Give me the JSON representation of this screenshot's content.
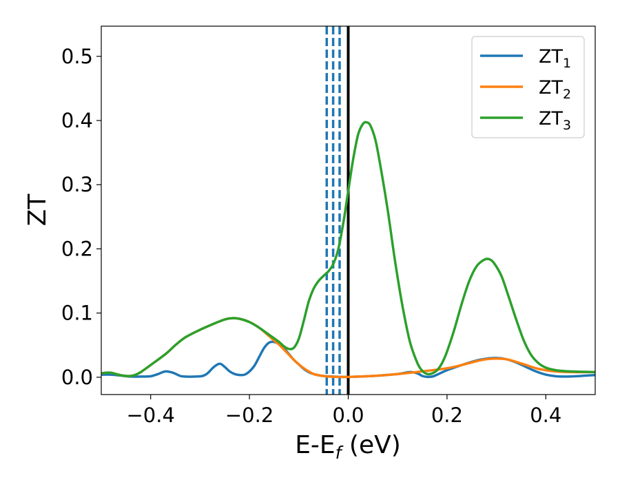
{
  "chart_data": {
    "type": "line",
    "xlabel": {
      "main": "E-E",
      "sub": "f",
      "suffix": " (eV)"
    },
    "ylabel": "ZT",
    "xlim": [
      -0.5,
      0.5
    ],
    "ylim": [
      -0.027,
      0.547
    ],
    "xticks": [
      {
        "value": -0.4,
        "label": "−0.4"
      },
      {
        "value": -0.2,
        "label": "−0.2"
      },
      {
        "value": 0.0,
        "label": "0.0"
      },
      {
        "value": 0.2,
        "label": "0.2"
      },
      {
        "value": 0.4,
        "label": "0.4"
      }
    ],
    "yticks": [
      {
        "value": 0.0,
        "label": "0.0"
      },
      {
        "value": 0.1,
        "label": "0.1"
      },
      {
        "value": 0.2,
        "label": "0.2"
      },
      {
        "value": 0.3,
        "label": "0.3"
      },
      {
        "value": 0.4,
        "label": "0.4"
      },
      {
        "value": 0.5,
        "label": "0.5"
      }
    ],
    "grid": false,
    "legend_position": "top-right",
    "series": [
      {
        "name": "ZT",
        "name_sub": "1",
        "color": "#1f77b4",
        "points": [
          [
            -0.5,
            0.004
          ],
          [
            -0.48,
            0.004
          ],
          [
            -0.46,
            0.0025
          ],
          [
            -0.44,
            0.001
          ],
          [
            -0.42,
            0.001
          ],
          [
            -0.4,
            0.0015
          ],
          [
            -0.385,
            0.005
          ],
          [
            -0.37,
            0.009
          ],
          [
            -0.355,
            0.007
          ],
          [
            -0.34,
            0.002
          ],
          [
            -0.33,
            0.001
          ],
          [
            -0.31,
            0.001
          ],
          [
            -0.295,
            0.002
          ],
          [
            -0.285,
            0.006
          ],
          [
            -0.272,
            0.016
          ],
          [
            -0.26,
            0.021
          ],
          [
            -0.25,
            0.016
          ],
          [
            -0.24,
            0.009
          ],
          [
            -0.23,
            0.005
          ],
          [
            -0.22,
            0.0035
          ],
          [
            -0.21,
            0.004
          ],
          [
            -0.2,
            0.009
          ],
          [
            -0.19,
            0.018
          ],
          [
            -0.18,
            0.032
          ],
          [
            -0.17,
            0.046
          ],
          [
            -0.16,
            0.054
          ],
          [
            -0.15,
            0.055
          ],
          [
            -0.14,
            0.052
          ],
          [
            -0.13,
            0.045
          ],
          [
            -0.12,
            0.036
          ],
          [
            -0.11,
            0.027
          ],
          [
            -0.1,
            0.02
          ],
          [
            -0.09,
            0.013
          ],
          [
            -0.08,
            0.008
          ],
          [
            -0.07,
            0.005
          ],
          [
            -0.06,
            0.003
          ],
          [
            -0.05,
            0.002
          ],
          [
            -0.03,
            0.001
          ],
          [
            0.0,
            0.0005
          ],
          [
            0.05,
            0.002
          ],
          [
            0.1,
            0.005
          ],
          [
            0.125,
            0.008
          ],
          [
            0.14,
            0.006
          ],
          [
            0.15,
            0.002
          ],
          [
            0.16,
            0.0005
          ],
          [
            0.17,
            0.001
          ],
          [
            0.18,
            0.004
          ],
          [
            0.2,
            0.011
          ],
          [
            0.23,
            0.019
          ],
          [
            0.26,
            0.026
          ],
          [
            0.28,
            0.029
          ],
          [
            0.3,
            0.03
          ],
          [
            0.32,
            0.028
          ],
          [
            0.34,
            0.023
          ],
          [
            0.36,
            0.016
          ],
          [
            0.38,
            0.009
          ],
          [
            0.4,
            0.004
          ],
          [
            0.42,
            0.0015
          ],
          [
            0.44,
            0.001
          ],
          [
            0.46,
            0.0015
          ],
          [
            0.48,
            0.0025
          ],
          [
            0.5,
            0.0035
          ]
        ]
      },
      {
        "name": "ZT",
        "name_sub": "2",
        "color": "#ff7f0e",
        "points": [
          [
            -0.5,
            0.006
          ],
          [
            -0.49,
            0.007
          ],
          [
            -0.48,
            0.007
          ],
          [
            -0.47,
            0.005
          ],
          [
            -0.46,
            0.003
          ],
          [
            -0.45,
            0.002
          ],
          [
            -0.44,
            0.002
          ],
          [
            -0.43,
            0.004
          ],
          [
            -0.42,
            0.008
          ],
          [
            -0.4,
            0.019
          ],
          [
            -0.37,
            0.036
          ],
          [
            -0.35,
            0.05
          ],
          [
            -0.33,
            0.062
          ],
          [
            -0.3,
            0.074
          ],
          [
            -0.27,
            0.084
          ],
          [
            -0.25,
            0.09
          ],
          [
            -0.235,
            0.092
          ],
          [
            -0.22,
            0.091
          ],
          [
            -0.2,
            0.086
          ],
          [
            -0.18,
            0.077
          ],
          [
            -0.16,
            0.064
          ],
          [
            -0.15,
            0.057
          ],
          [
            -0.14,
            0.051
          ],
          [
            -0.13,
            0.043
          ],
          [
            -0.12,
            0.035
          ],
          [
            -0.11,
            0.027
          ],
          [
            -0.1,
            0.02
          ],
          [
            -0.09,
            0.014
          ],
          [
            -0.08,
            0.009
          ],
          [
            -0.07,
            0.005
          ],
          [
            -0.06,
            0.003
          ],
          [
            -0.04,
            0.001
          ],
          [
            -0.02,
            0.0005
          ],
          [
            0.0,
            0.0005
          ],
          [
            0.05,
            0.002
          ],
          [
            0.1,
            0.005
          ],
          [
            0.15,
            0.009
          ],
          [
            0.2,
            0.014
          ],
          [
            0.23,
            0.019
          ],
          [
            0.26,
            0.025
          ],
          [
            0.28,
            0.028
          ],
          [
            0.3,
            0.029
          ],
          [
            0.32,
            0.028
          ],
          [
            0.34,
            0.024
          ],
          [
            0.36,
            0.019
          ],
          [
            0.38,
            0.014
          ],
          [
            0.4,
            0.011
          ],
          [
            0.42,
            0.009
          ],
          [
            0.45,
            0.008
          ],
          [
            0.5,
            0.008
          ]
        ]
      },
      {
        "name": "ZT",
        "name_sub": "3",
        "color": "#2ca02c",
        "points": [
          [
            -0.5,
            0.006
          ],
          [
            -0.49,
            0.007
          ],
          [
            -0.48,
            0.007
          ],
          [
            -0.47,
            0.005
          ],
          [
            -0.46,
            0.003
          ],
          [
            -0.45,
            0.002
          ],
          [
            -0.44,
            0.002
          ],
          [
            -0.43,
            0.004
          ],
          [
            -0.42,
            0.008
          ],
          [
            -0.4,
            0.019
          ],
          [
            -0.37,
            0.036
          ],
          [
            -0.35,
            0.05
          ],
          [
            -0.33,
            0.062
          ],
          [
            -0.3,
            0.074
          ],
          [
            -0.27,
            0.084
          ],
          [
            -0.25,
            0.09
          ],
          [
            -0.235,
            0.092
          ],
          [
            -0.22,
            0.091
          ],
          [
            -0.2,
            0.086
          ],
          [
            -0.18,
            0.077
          ],
          [
            -0.16,
            0.066
          ],
          [
            -0.14,
            0.055
          ],
          [
            -0.13,
            0.048
          ],
          [
            -0.12,
            0.044
          ],
          [
            -0.11,
            0.046
          ],
          [
            -0.1,
            0.06
          ],
          [
            -0.09,
            0.088
          ],
          [
            -0.08,
            0.118
          ],
          [
            -0.07,
            0.138
          ],
          [
            -0.06,
            0.15
          ],
          [
            -0.05,
            0.158
          ],
          [
            -0.04,
            0.165
          ],
          [
            -0.03,
            0.177
          ],
          [
            -0.02,
            0.2
          ],
          [
            -0.01,
            0.24
          ],
          [
            0.0,
            0.29
          ],
          [
            0.01,
            0.34
          ],
          [
            0.02,
            0.378
          ],
          [
            0.03,
            0.395
          ],
          [
            0.038,
            0.397
          ],
          [
            0.045,
            0.392
          ],
          [
            0.055,
            0.37
          ],
          [
            0.065,
            0.33
          ],
          [
            0.08,
            0.26
          ],
          [
            0.095,
            0.18
          ],
          [
            0.11,
            0.11
          ],
          [
            0.125,
            0.055
          ],
          [
            0.14,
            0.022
          ],
          [
            0.15,
            0.01
          ],
          [
            0.16,
            0.005
          ],
          [
            0.17,
            0.006
          ],
          [
            0.18,
            0.011
          ],
          [
            0.19,
            0.022
          ],
          [
            0.2,
            0.04
          ],
          [
            0.215,
            0.075
          ],
          [
            0.23,
            0.115
          ],
          [
            0.245,
            0.15
          ],
          [
            0.26,
            0.173
          ],
          [
            0.275,
            0.183
          ],
          [
            0.285,
            0.184
          ],
          [
            0.295,
            0.178
          ],
          [
            0.31,
            0.158
          ],
          [
            0.325,
            0.125
          ],
          [
            0.34,
            0.09
          ],
          [
            0.355,
            0.058
          ],
          [
            0.37,
            0.035
          ],
          [
            0.385,
            0.022
          ],
          [
            0.4,
            0.015
          ],
          [
            0.42,
            0.011
          ],
          [
            0.45,
            0.009
          ],
          [
            0.5,
            0.008
          ]
        ]
      }
    ],
    "vlines": [
      {
        "x": 0.0,
        "color": "#000000",
        "style": "solid"
      },
      {
        "x": -0.0175,
        "color": "#1f77b4",
        "style": "dashed"
      },
      {
        "x": -0.0305,
        "color": "#1f77b4",
        "style": "dashed"
      },
      {
        "x": -0.0435,
        "color": "#1f77b4",
        "style": "dashed"
      }
    ]
  }
}
